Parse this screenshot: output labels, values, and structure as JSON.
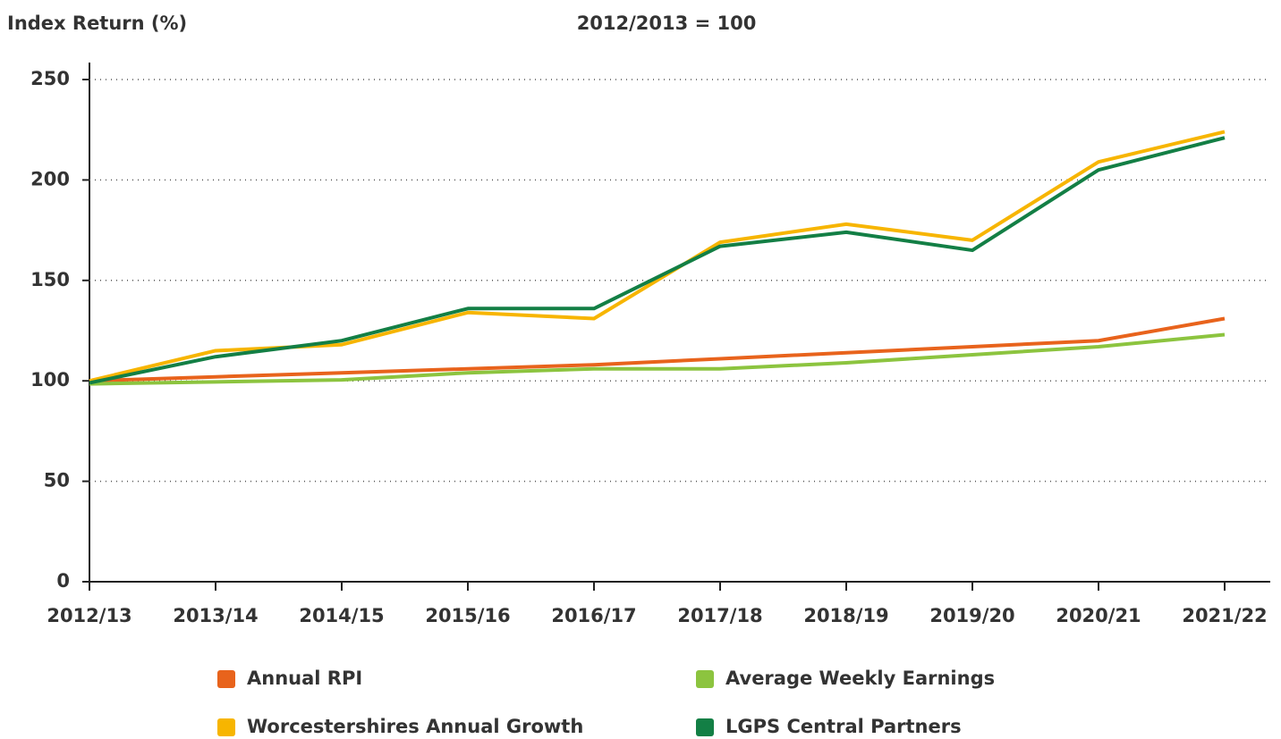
{
  "chart_data": {
    "type": "line",
    "title": "Index Return (%)",
    "subtitle": "2012/2013 = 100",
    "categories": [
      "2012/13",
      "2013/14",
      "2014/15",
      "2015/16",
      "2016/17",
      "2017/18",
      "2018/19",
      "2019/20",
      "2020/21",
      "2021/22"
    ],
    "series": [
      {
        "name": "Annual RPI",
        "color": "#e8631c",
        "values": [
          100,
          102,
          104,
          106,
          108,
          111,
          114,
          117,
          120,
          131
        ]
      },
      {
        "name": "Average Weekly Earnings",
        "color": "#8cc43f",
        "values": [
          98.5,
          99.5,
          100.5,
          104,
          106,
          106,
          109,
          113,
          117,
          123
        ]
      },
      {
        "name": "Worcestershires Annual Growth",
        "color": "#f7b500",
        "values": [
          100,
          115,
          118,
          134,
          131,
          169,
          178,
          170,
          209,
          224
        ]
      },
      {
        "name": "LGPS Central Partners",
        "color": "#137f45",
        "values": [
          99,
          112,
          120,
          136,
          136,
          167,
          174,
          165,
          205,
          221
        ]
      }
    ],
    "ylim": [
      0,
      250
    ],
    "yticks": [
      0,
      50,
      100,
      150,
      200,
      250
    ],
    "grid": true
  }
}
